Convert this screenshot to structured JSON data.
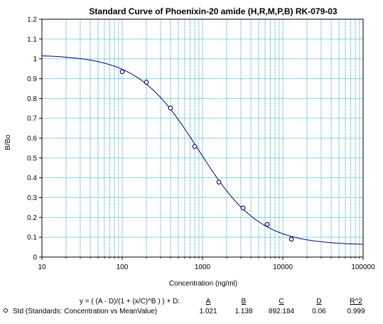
{
  "chart_data": {
    "type": "scatter",
    "title": "Standard Curve of Phoenixin-20 amide (H,R,M,P,B)  RK-079-03",
    "xlabel": "Concentration (ng/ml)",
    "ylabel": "B/Bo",
    "x_scale": "log",
    "xlim": [
      10,
      100000
    ],
    "ylim": [
      0,
      1.2
    ],
    "x_ticks": [
      "10",
      "100",
      "1000",
      "10000",
      "100000"
    ],
    "y_ticks": [
      "0",
      "0.1",
      "0.2",
      "0.3",
      "0.4",
      "0.5",
      "0.6",
      "0.7",
      "0.8",
      "0.9",
      "1",
      "1.1",
      "1.2"
    ],
    "grid": true,
    "series": [
      {
        "name": "Std (Standards: Concentration vs MeanValue)",
        "x": [
          100,
          200,
          400,
          800,
          1600,
          3200,
          6400,
          12800
        ],
        "y": [
          0.935,
          0.882,
          0.752,
          0.558,
          0.378,
          0.248,
          0.165,
          0.09
        ]
      }
    ],
    "fit": {
      "equation": "y = ( (A - D)/(1 + (x/C)^B ) ) + D:",
      "param_headers": [
        "A",
        "B",
        "C",
        "D",
        "R^2"
      ],
      "param_values": [
        "1.021",
        "1.138",
        "892.184",
        "0.06",
        "0.999"
      ],
      "A": 1.021,
      "B": 1.138,
      "C": 892.184,
      "D": 0.06
    },
    "colors": {
      "grid": "#22a6c4",
      "curve": "#000080",
      "marker": "#000080"
    }
  }
}
